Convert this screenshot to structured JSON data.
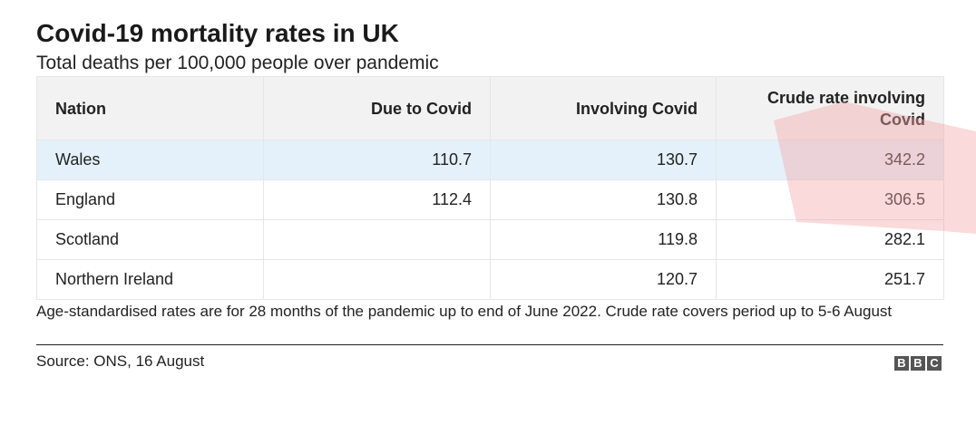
{
  "header": {
    "title": "Covid-19 mortality rates in UK",
    "subtitle": "Total deaths per 100,000 people over pandemic"
  },
  "chart_data": {
    "type": "table",
    "columns": [
      "Nation",
      "Due to Covid",
      "Involving Covid",
      "Crude rate involving Covid"
    ],
    "rows": [
      {
        "nation": "Wales",
        "due": "110.7",
        "involving": "130.7",
        "crude": "342.2"
      },
      {
        "nation": "England",
        "due": "112.4",
        "involving": "130.8",
        "crude": "306.5"
      },
      {
        "nation": "Scotland",
        "due": "",
        "involving": "119.8",
        "crude": "282.1"
      },
      {
        "nation": "Northern Ireland",
        "due": "",
        "involving": "120.7",
        "crude": "251.7"
      }
    ],
    "highlighted_row": "Wales"
  },
  "footer": {
    "note": "Age-standardised rates are for 28 months of the pandemic up to end of June 2022. Crude rate covers period up to 5-6 August",
    "source": "Source: ONS, 16 August",
    "logo_letters": [
      "B",
      "B",
      "C"
    ]
  },
  "colors": {
    "header_bg": "#f2f2f2",
    "highlight_row_bg": "#e4f1fb",
    "overlay_red": "#f4a6a6",
    "logo_gray": "#555555"
  }
}
